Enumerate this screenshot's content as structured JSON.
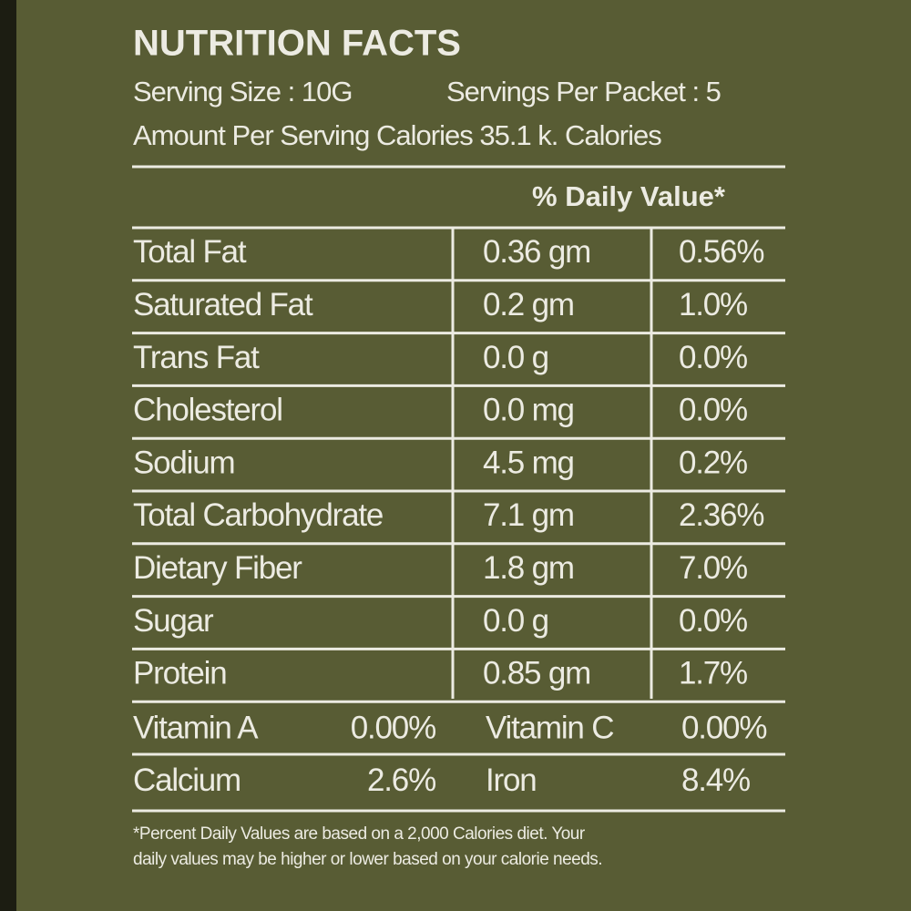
{
  "title": "NUTRITION FACTS",
  "serving_size": "Serving Size : 10G",
  "servings_per_packet": "Servings Per Packet : 5",
  "calories": "Amount Per Serving Calories 35.1 k. Calories",
  "daily_value_header": "% Daily Value*",
  "nutrients": [
    {
      "name": "Total Fat",
      "amount": "0.36 gm",
      "daily_value": "0.56%"
    },
    {
      "name": "Saturated Fat",
      "amount": "0.2 gm",
      "daily_value": "1.0%"
    },
    {
      "name": "Trans Fat",
      "amount": "0.0 g",
      "daily_value": "0.0%"
    },
    {
      "name": "Cholesterol",
      "amount": "0.0 mg",
      "daily_value": "0.0%"
    },
    {
      "name": "Sodium",
      "amount": "4.5 mg",
      "daily_value": "0.2%"
    },
    {
      "name": "Total Carbohydrate",
      "amount": "7.1 gm",
      "daily_value": "2.36%"
    },
    {
      "name": "Dietary Fiber",
      "amount": "1.8 gm",
      "daily_value": "7.0%"
    },
    {
      "name": "Sugar",
      "amount": "0.0 g",
      "daily_value": "0.0%"
    },
    {
      "name": "Protein",
      "amount": "0.85 gm",
      "daily_value": "1.7%"
    }
  ],
  "vitamins": [
    [
      {
        "name": "Vitamin A",
        "value": "0.00%"
      },
      {
        "name": "Vitamin C",
        "value": "0.00%"
      }
    ],
    [
      {
        "name": "Calcium",
        "value": "2.6%"
      },
      {
        "name": "Iron",
        "value": "8.4%"
      }
    ]
  ],
  "footnote": [
    "*Percent Daily Values are based on a 2,000 Calories diet. Your",
    "daily values may be higher or lower based on your calorie needs."
  ]
}
